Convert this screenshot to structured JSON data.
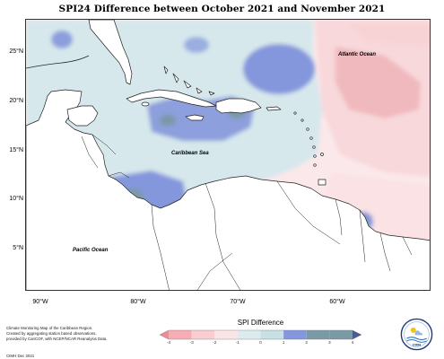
{
  "title": "SPI24 Difference between October 2021 and November 2021",
  "map_labels": {
    "atlantic": "Atlantic Ocean",
    "caribbean": "Caribbean Sea",
    "pacific": "Pacific Ocean"
  },
  "lat_labels": [
    "25°N",
    "20°N",
    "15°N",
    "10°N",
    "5°N"
  ],
  "lon_labels": [
    "90°W",
    "80°W",
    "70°W",
    "60°W"
  ],
  "credits": {
    "line1": "Climate Monitoring Map of the Caribbean Region.",
    "line2": "Created by aggregating station based observations,",
    "line3": "provided by CariCOF, with NCEP/NCAR Reanalysis Data.",
    "date": "CIMH  Dec 2021"
  },
  "legend": {
    "title": "SPI Difference",
    "ticks": [
      "-4",
      "-3",
      "-2",
      "-1",
      "0",
      "1",
      "2",
      "3",
      "4"
    ],
    "colors": [
      "#f08a95",
      "#f6aeb4",
      "#f9cdd1",
      "#fbe4e6",
      "#dcebed",
      "#c7e0e4",
      "#8597dc",
      "#7a9aa6",
      "#4b5b96"
    ]
  },
  "logo": {
    "text": "CIMH"
  }
}
